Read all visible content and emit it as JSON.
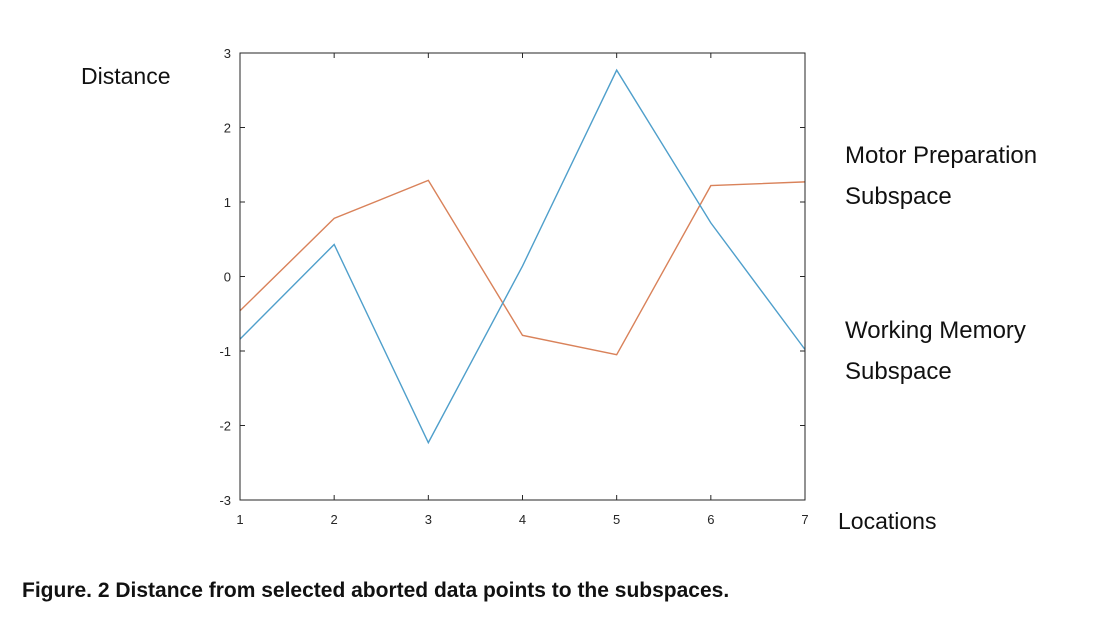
{
  "chart_data": {
    "type": "line",
    "ylabel": "Distance",
    "xlabel": "Locations",
    "x": [
      1,
      2,
      3,
      4,
      5,
      6,
      7
    ],
    "xlim": [
      1,
      7
    ],
    "ylim": [
      -3,
      3
    ],
    "xticks": [
      1,
      2,
      3,
      4,
      5,
      6,
      7
    ],
    "yticks": [
      -3,
      -2,
      -1,
      0,
      1,
      2,
      3
    ],
    "grid": false,
    "series": [
      {
        "name": "Motor Preparation Subspace",
        "color": "#d9825a",
        "values": [
          -0.46,
          0.78,
          1.29,
          -0.79,
          -1.05,
          1.22,
          1.27
        ]
      },
      {
        "name": "Working Memory Subspace",
        "color": "#4f9fcb",
        "values": [
          -0.84,
          0.43,
          -2.23,
          0.14,
          2.77,
          0.72,
          -0.98
        ]
      }
    ]
  },
  "caption": "Figure. 2 Distance from selected aborted data points to the subspaces."
}
